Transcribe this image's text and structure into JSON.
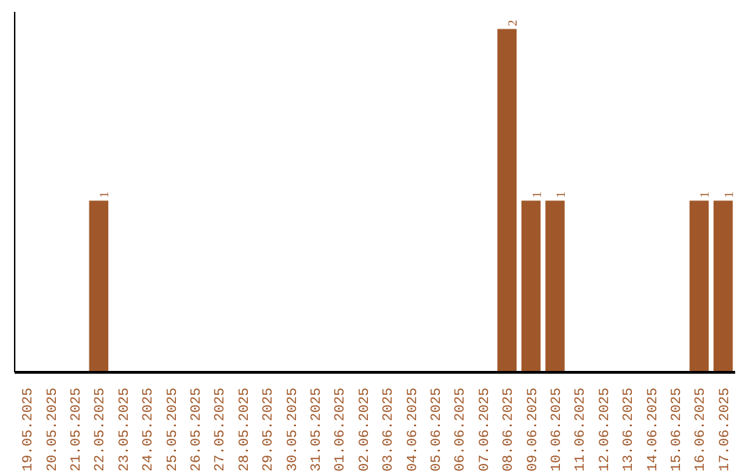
{
  "chart_data": {
    "type": "bar",
    "categories": [
      "19.05.2025",
      "20.05.2025",
      "21.05.2025",
      "22.05.2025",
      "23.05.2025",
      "24.05.2025",
      "25.05.2025",
      "26.05.2025",
      "27.05.2025",
      "28.05.2025",
      "29.05.2025",
      "30.05.2025",
      "31.05.2025",
      "01.06.2025",
      "02.06.2025",
      "03.06.2025",
      "04.06.2025",
      "05.06.2025",
      "06.06.2025",
      "07.06.2025",
      "08.06.2025",
      "09.06.2025",
      "10.06.2025",
      "11.06.2025",
      "12.06.2025",
      "13.06.2025",
      "14.06.2025",
      "15.06.2025",
      "16.06.2025",
      "17.06.2025"
    ],
    "values": [
      0,
      0,
      0,
      1,
      0,
      0,
      0,
      0,
      0,
      0,
      0,
      0,
      0,
      0,
      0,
      0,
      0,
      0,
      0,
      0,
      2,
      1,
      1,
      0,
      0,
      0,
      0,
      0,
      1,
      1
    ],
    "value_labels": [
      null,
      null,
      null,
      "1",
      null,
      null,
      null,
      null,
      null,
      null,
      null,
      null,
      null,
      null,
      null,
      null,
      null,
      null,
      null,
      null,
      "2",
      "1",
      "1",
      null,
      null,
      null,
      null,
      null,
      "1",
      "1"
    ],
    "color": "#a0582a",
    "ylim": [
      0,
      2.1
    ],
    "tick_labels": "x",
    "grid": false
  }
}
